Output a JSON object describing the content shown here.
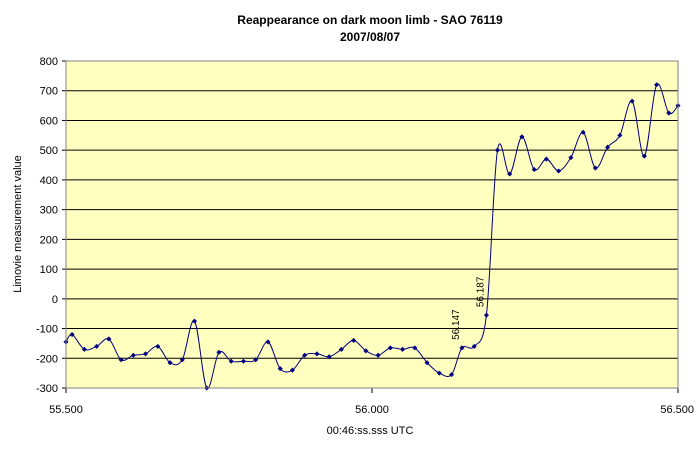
{
  "chart_data": {
    "type": "line",
    "title": "Reappearance on dark moon limb - SAO 76119",
    "subtitle": "2007/08/07",
    "xlabel": "00:46:ss.sss UTC",
    "ylabel": "Limovie measurement value",
    "xlim": [
      55.5,
      56.5
    ],
    "ylim": [
      -300,
      800
    ],
    "x_ticks": [
      "55.500",
      "56.000",
      "56.500"
    ],
    "y_ticks": [
      "800",
      "700",
      "600",
      "500",
      "400",
      "300",
      "200",
      "100",
      "0",
      "-100",
      "-200",
      "-300"
    ],
    "grid": "horizontal",
    "colors": {
      "plot_background": "#FFFFC0",
      "line": "#000080",
      "marker": "#000080",
      "grid": "#000000"
    },
    "series": [
      {
        "x": [
          55.5,
          55.51,
          55.53,
          55.55,
          55.57,
          55.59,
          55.61,
          55.63,
          55.65,
          55.67,
          55.69,
          55.71,
          55.73,
          55.75,
          55.77,
          55.79,
          55.81,
          55.83,
          55.85,
          55.87,
          55.89,
          55.91,
          55.93,
          55.95,
          55.97,
          55.99,
          56.01,
          56.03,
          56.05,
          56.07,
          56.09,
          56.11,
          56.13,
          56.147,
          56.167,
          56.187,
          56.205,
          56.225,
          56.245,
          56.265,
          56.285,
          56.305,
          56.325,
          56.345,
          56.365,
          56.385,
          56.405,
          56.425,
          56.445,
          56.465,
          56.485,
          56.5
        ],
        "y": [
          -145,
          -120,
          -170,
          -160,
          -135,
          -205,
          -190,
          -185,
          -160,
          -215,
          -205,
          -75,
          -300,
          -180,
          -210,
          -210,
          -205,
          -145,
          -235,
          -240,
          -190,
          -185,
          -195,
          -170,
          -140,
          -175,
          -190,
          -165,
          -170,
          -165,
          -215,
          -250,
          -255,
          -165,
          -160,
          -55,
          500,
          420,
          545,
          435,
          470,
          430,
          475,
          560,
          440,
          510,
          550,
          665,
          480,
          720,
          625,
          650
        ]
      }
    ],
    "annotations": [
      {
        "text": "56.147",
        "x": 56.147,
        "y": -165
      },
      {
        "text": "56.187",
        "x": 56.187,
        "y": -55
      }
    ]
  }
}
